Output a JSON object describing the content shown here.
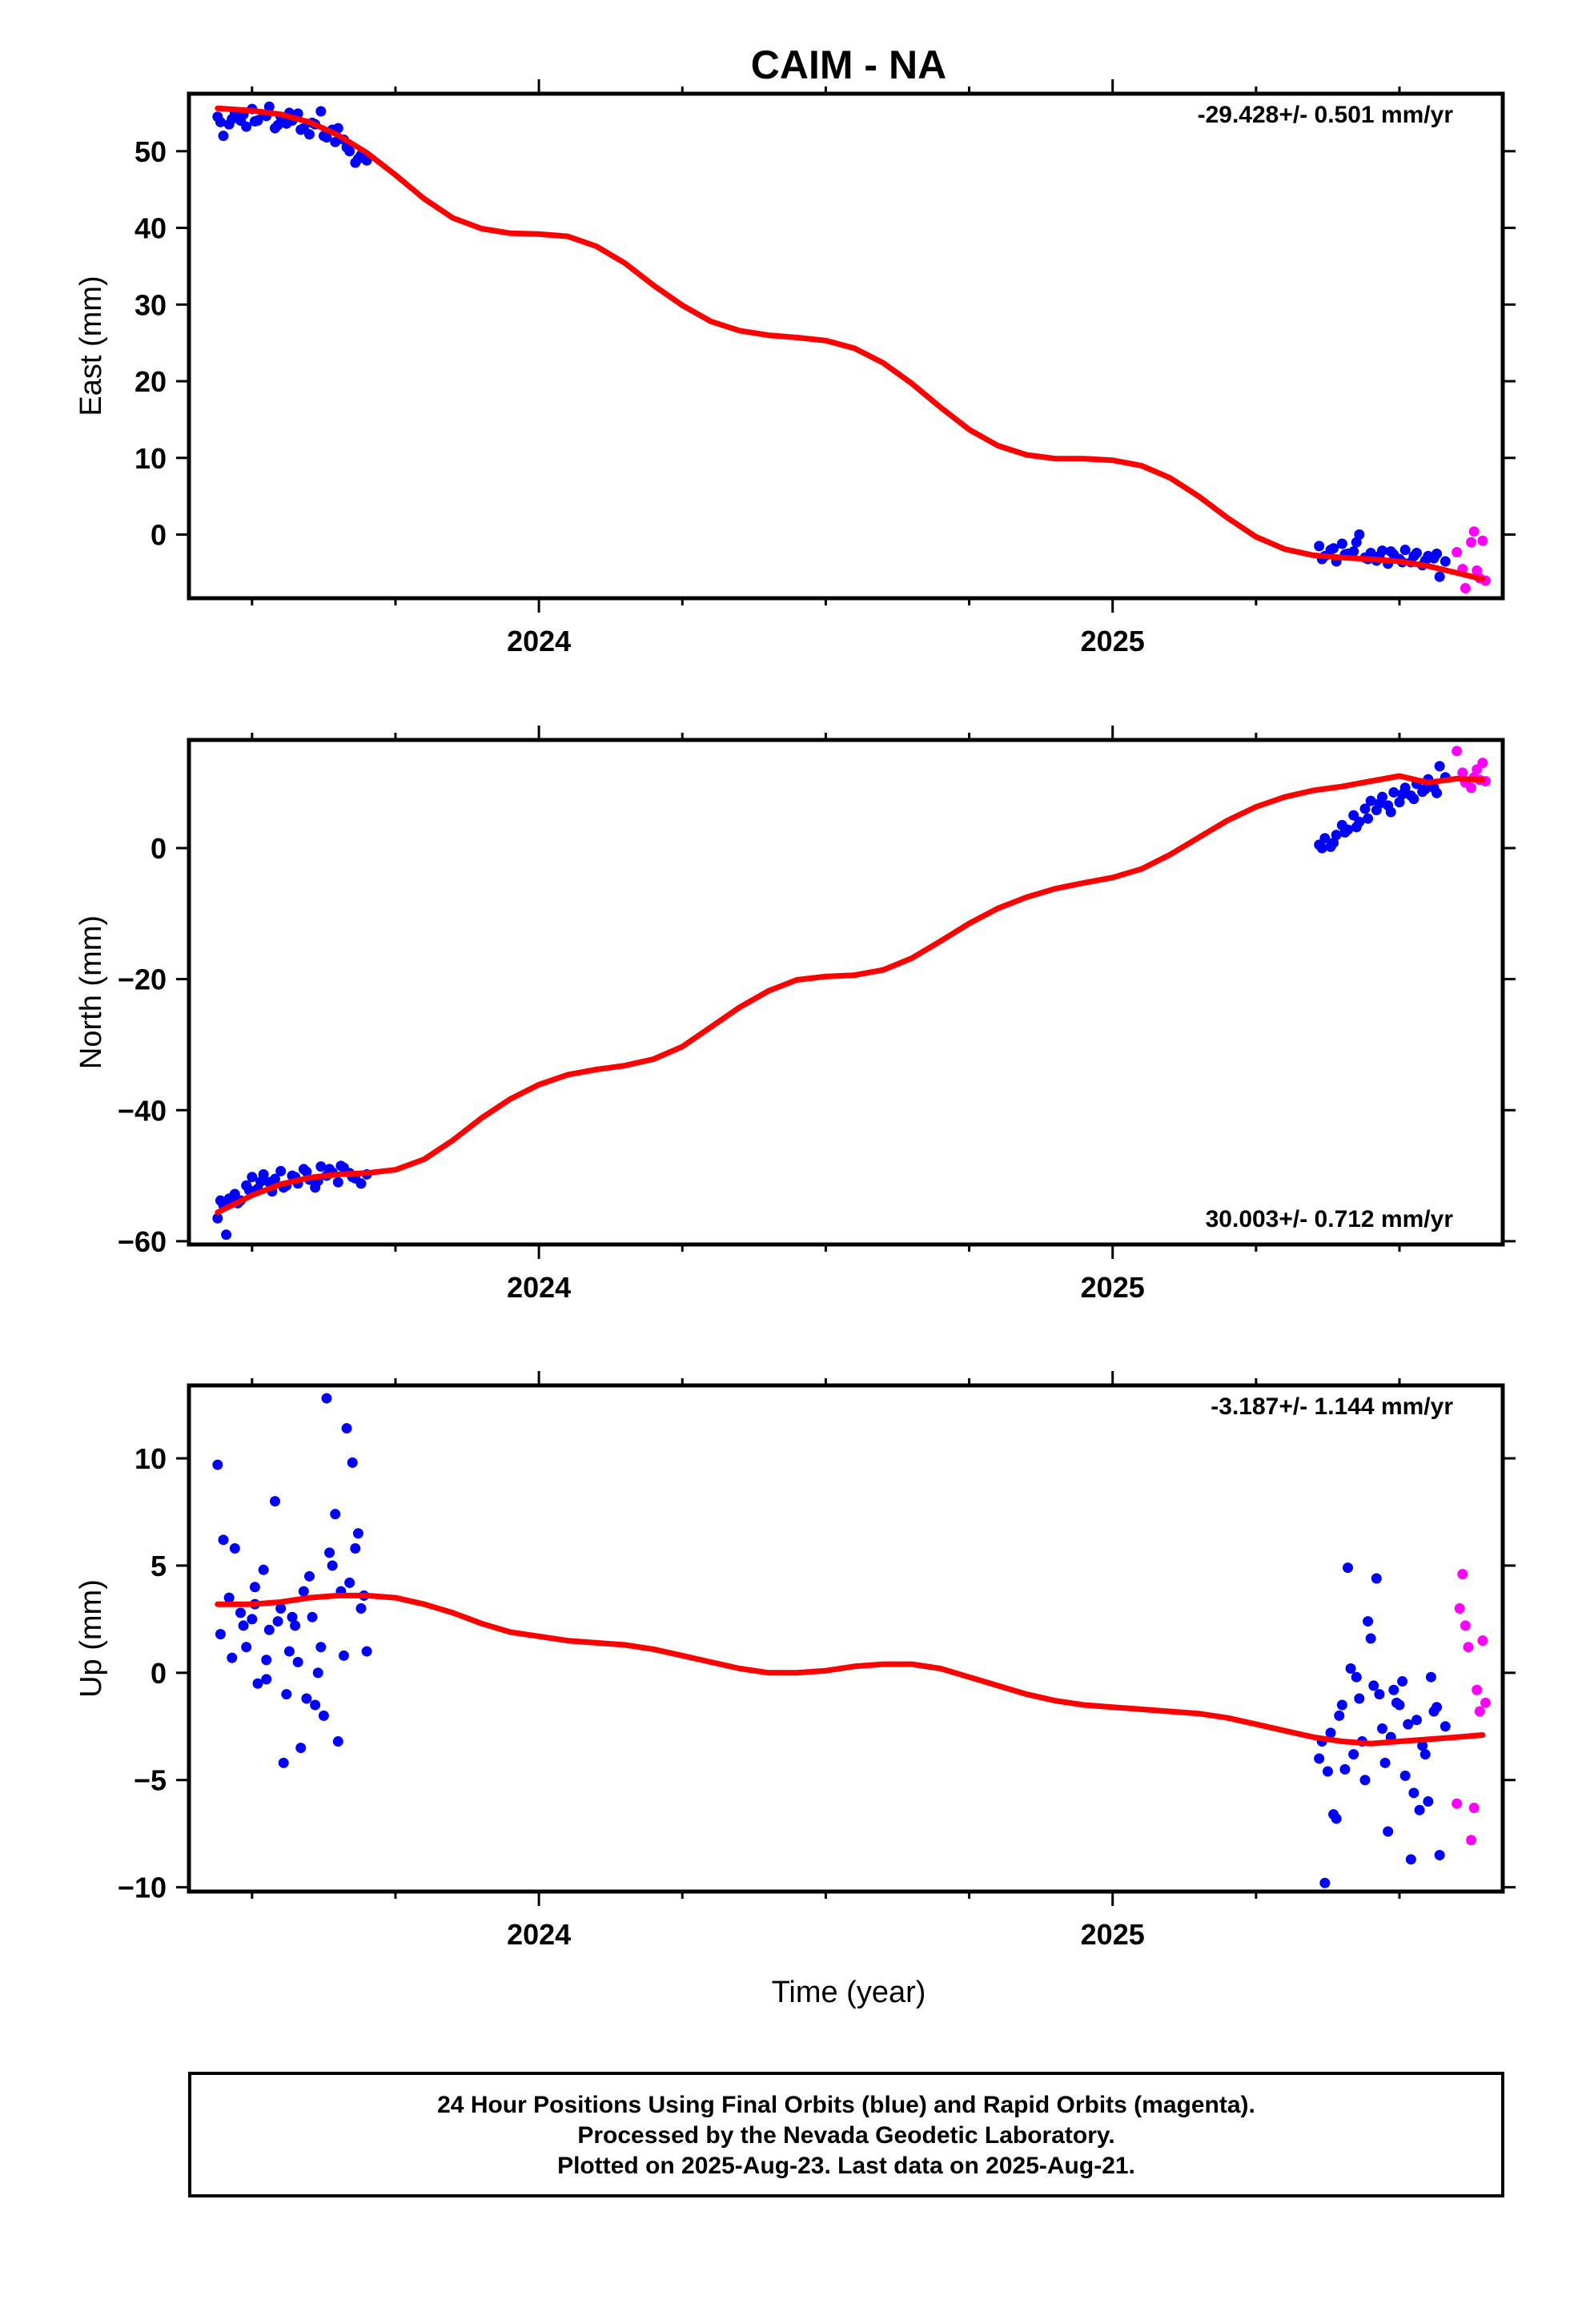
{
  "title": "CAIM - NA",
  "xlabel": "Time (year)",
  "colors": {
    "final": "#0000ff",
    "rapid": "#ff00ff",
    "model": "#ff0000",
    "frame": "#000000"
  },
  "footer": {
    "line1": "24 Hour Positions Using Final Orbits (blue) and Rapid Orbits (magenta).",
    "line2": "Processed by the Nevada Geodetic Laboratory.",
    "line3": "Plotted on 2025-Aug-23. Last data on 2025-Aug-21."
  },
  "chart_data": [
    {
      "type": "scatter",
      "component": "east",
      "ylabel": "East (mm)",
      "rate_text": "-29.428+/- 0.501 mm/yr",
      "rate_position": "top-right",
      "xlim": [
        2023.39,
        2025.68
      ],
      "ylim": [
        -8.3,
        57.5
      ],
      "yticks": [
        0,
        10,
        20,
        30,
        40,
        50
      ],
      "ytick_labels": [
        "0",
        "10",
        "20",
        "30",
        "40",
        "50"
      ],
      "xticks_major": [
        2024,
        2025
      ],
      "xtick_labels": [
        "2024",
        "2025"
      ],
      "xticks_minor": [
        2023.5,
        2023.75,
        2024.25,
        2024.5,
        2024.75,
        2025.25,
        2025.5
      ],
      "model": {
        "name": "",
        "x": [
          2023.44,
          2023.5,
          2023.55,
          2023.6,
          2023.65,
          2023.7,
          2023.75,
          2023.8,
          2023.85,
          2023.9,
          2023.95,
          2024.0,
          2024.05,
          2024.1,
          2024.15,
          2024.2,
          2024.25,
          2024.3,
          2024.35,
          2024.4,
          2024.45,
          2024.5,
          2024.55,
          2024.6,
          2024.65,
          2024.7,
          2024.75,
          2024.8,
          2024.85,
          2024.9,
          2024.95,
          2025.0,
          2025.05,
          2025.1,
          2025.15,
          2025.2,
          2025.25,
          2025.3,
          2025.35,
          2025.4,
          2025.45,
          2025.5,
          2025.55,
          2025.6,
          2025.645
        ],
        "y": [
          55.6,
          55.3,
          54.8,
          53.8,
          52.1,
          49.8,
          46.9,
          43.8,
          41.3,
          39.9,
          39.3,
          39.2,
          38.9,
          37.6,
          35.4,
          32.5,
          29.9,
          27.8,
          26.6,
          26.0,
          25.7,
          25.3,
          24.3,
          22.4,
          19.7,
          16.6,
          13.7,
          11.6,
          10.4,
          9.9,
          9.9,
          9.7,
          9.0,
          7.4,
          5.0,
          2.2,
          -0.3,
          -1.9,
          -2.7,
          -3.0,
          -3.2,
          -3.5,
          -4.1,
          -5.0,
          -5.8
        ]
      },
      "final_points": {
        "name": "",
        "x": [
          2023.44,
          2023.45,
          2023.46,
          2023.47,
          2023.48,
          2023.49,
          2023.5,
          2023.51,
          2023.52,
          2023.53,
          2023.54,
          2023.55,
          2023.56,
          2023.57,
          2023.58,
          2023.59,
          2023.6,
          2023.61,
          2023.62,
          2023.63,
          2023.64,
          2023.65,
          2023.66,
          2023.67,
          2023.68,
          2023.69,
          2023.7,
          2023.445,
          2023.465,
          2023.485,
          2023.505,
          2023.525,
          2023.545,
          2023.565,
          2023.585,
          2023.605,
          2023.625,
          2023.645,
          2023.665,
          2023.685,
          2025.36,
          2025.37,
          2025.38,
          2025.39,
          2025.4,
          2025.41,
          2025.42,
          2025.43,
          2025.44,
          2025.45,
          2025.46,
          2025.47,
          2025.48,
          2025.49,
          2025.5,
          2025.51,
          2025.52,
          2025.53,
          2025.54,
          2025.55,
          2025.56,
          2025.57,
          2025.58,
          2025.365,
          2025.385,
          2025.405,
          2025.425,
          2025.445,
          2025.465,
          2025.485,
          2025.505,
          2025.525,
          2025.545,
          2025.565
        ],
        "y": [
          54.5,
          52.0,
          53.5,
          55.0,
          54.0,
          53.2,
          55.5,
          54.0,
          54.8,
          55.8,
          53.0,
          54.5,
          53.6,
          54.0,
          54.9,
          53.0,
          52.2,
          53.5,
          55.2,
          51.8,
          52.8,
          53.0,
          51.5,
          50.0,
          48.5,
          49.5,
          48.8,
          53.8,
          54.2,
          54.8,
          53.9,
          54.6,
          53.4,
          55.0,
          52.8,
          53.7,
          52.0,
          51.2,
          50.5,
          49.0,
          -1.5,
          -2.8,
          -2.0,
          -3.5,
          -1.2,
          -2.5,
          -2.2,
          0.0,
          -3.0,
          -2.4,
          -3.4,
          -2.1,
          -3.8,
          -2.6,
          -3.2,
          -2.0,
          -3.6,
          -2.4,
          -4.0,
          -2.8,
          -3.1,
          -5.5,
          -3.5,
          -3.2,
          -1.8,
          -2.6,
          -1.0,
          -3.2,
          -2.8,
          -2.2,
          -3.6,
          -2.8,
          -3.4,
          -2.5
        ]
      },
      "rapid_points": {
        "name": "",
        "x": [
          2025.6,
          2025.61,
          2025.615,
          2025.625,
          2025.63,
          2025.635,
          2025.64,
          2025.645,
          2025.65
        ],
        "y": [
          -2.3,
          -4.5,
          -7.0,
          -1.0,
          0.4,
          -4.7,
          -5.7,
          -0.8,
          -6.0
        ]
      }
    },
    {
      "type": "scatter",
      "component": "north",
      "ylabel": "North (mm)",
      "rate_text": "30.003+/- 0.712 mm/yr",
      "rate_position": "bottom-right",
      "xlim": [
        2023.39,
        2025.68
      ],
      "ylim": [
        -60.5,
        16.5
      ],
      "yticks": [
        -60,
        -40,
        -20,
        0
      ],
      "ytick_labels": [
        "−60",
        "−40",
        "−20",
        "0"
      ],
      "xticks_major": [
        2024,
        2025
      ],
      "xtick_labels": [
        "2024",
        "2025"
      ],
      "xticks_minor": [
        2023.5,
        2023.75,
        2024.25,
        2024.5,
        2024.75,
        2025.25,
        2025.5
      ],
      "model": {
        "name": "",
        "x": [
          2023.44,
          2023.5,
          2023.55,
          2023.6,
          2023.65,
          2023.7,
          2023.75,
          2023.8,
          2023.85,
          2023.9,
          2023.95,
          2024.0,
          2024.05,
          2024.1,
          2024.15,
          2024.2,
          2024.25,
          2024.3,
          2024.35,
          2024.4,
          2024.45,
          2024.5,
          2024.55,
          2024.6,
          2024.65,
          2024.7,
          2024.75,
          2024.8,
          2024.85,
          2024.9,
          2024.95,
          2025.0,
          2025.05,
          2025.1,
          2025.15,
          2025.2,
          2025.25,
          2025.3,
          2025.35,
          2025.4,
          2025.45,
          2025.5,
          2025.55,
          2025.6,
          2025.645
        ],
        "y": [
          -55.6,
          -53.0,
          -51.3,
          -50.3,
          -49.8,
          -49.6,
          -49.1,
          -47.5,
          -44.6,
          -41.2,
          -38.3,
          -36.1,
          -34.6,
          -33.8,
          -33.2,
          -32.2,
          -30.3,
          -27.3,
          -24.3,
          -21.8,
          -20.1,
          -19.6,
          -19.4,
          -18.6,
          -16.8,
          -14.2,
          -11.5,
          -9.2,
          -7.5,
          -6.2,
          -5.3,
          -4.5,
          -3.2,
          -1.0,
          1.6,
          4.2,
          6.3,
          7.8,
          8.8,
          9.4,
          10.2,
          11.0,
          10.0,
          10.6,
          10.4
        ]
      },
      "final_points": {
        "name": "",
        "x": [
          2023.44,
          2023.45,
          2023.46,
          2023.47,
          2023.48,
          2023.49,
          2023.5,
          2023.51,
          2023.52,
          2023.53,
          2023.54,
          2023.55,
          2023.56,
          2023.57,
          2023.58,
          2023.59,
          2023.6,
          2023.61,
          2023.62,
          2023.63,
          2023.64,
          2023.65,
          2023.66,
          2023.67,
          2023.68,
          2023.69,
          2023.7,
          2023.445,
          2023.455,
          2023.475,
          2023.495,
          2023.515,
          2023.535,
          2023.555,
          2023.575,
          2023.595,
          2023.615,
          2023.635,
          2023.655,
          2023.675,
          2025.36,
          2025.37,
          2025.38,
          2025.39,
          2025.4,
          2025.41,
          2025.42,
          2025.43,
          2025.44,
          2025.45,
          2025.46,
          2025.47,
          2025.48,
          2025.49,
          2025.5,
          2025.51,
          2025.52,
          2025.53,
          2025.54,
          2025.55,
          2025.56,
          2025.57,
          2025.58,
          2025.365,
          2025.385,
          2025.405,
          2025.425,
          2025.445,
          2025.465,
          2025.485,
          2025.505,
          2025.525,
          2025.545,
          2025.565
        ],
        "y": [
          -56.5,
          -54.5,
          -53.5,
          -52.8,
          -53.8,
          -51.5,
          -50.2,
          -52.0,
          -49.8,
          -51.0,
          -50.5,
          -49.3,
          -51.5,
          -50.0,
          -51.2,
          -49.0,
          -50.6,
          -51.8,
          -48.6,
          -50.0,
          -49.5,
          -51.0,
          -48.8,
          -49.6,
          -50.4,
          -51.2,
          -49.8,
          -53.8,
          -59.0,
          -54.2,
          -52.2,
          -50.9,
          -52.4,
          -51.8,
          -50.2,
          -49.4,
          -50.8,
          -49.0,
          -48.5,
          -50.2,
          0.5,
          1.5,
          0.2,
          2.0,
          3.5,
          2.8,
          5.0,
          4.0,
          6.0,
          7.2,
          5.8,
          7.8,
          6.5,
          8.5,
          7.0,
          9.2,
          8.0,
          9.8,
          8.6,
          10.5,
          9.2,
          12.5,
          10.8,
          0.0,
          0.8,
          2.4,
          3.2,
          4.5,
          6.8,
          5.5,
          8.2,
          7.5,
          9.0,
          8.4
        ]
      },
      "rapid_points": {
        "name": "",
        "x": [
          2025.6,
          2025.61,
          2025.615,
          2025.625,
          2025.63,
          2025.635,
          2025.64,
          2025.645,
          2025.65
        ],
        "y": [
          14.8,
          11.5,
          10.0,
          9.2,
          10.8,
          12.0,
          10.4,
          13.0,
          10.2
        ]
      }
    },
    {
      "type": "scatter",
      "component": "up",
      "ylabel": "Up (mm)",
      "rate_text": "-3.187+/- 1.144 mm/yr",
      "rate_position": "top-right",
      "xlim": [
        2023.39,
        2025.68
      ],
      "ylim": [
        -10.2,
        13.4
      ],
      "yticks": [
        -10,
        -5,
        0,
        5,
        10
      ],
      "ytick_labels": [
        "−10",
        "−5",
        "0",
        "5",
        "10"
      ],
      "xticks_major": [
        2024,
        2025
      ],
      "xtick_labels": [
        "2024",
        "2025"
      ],
      "xticks_minor": [
        2023.5,
        2023.75,
        2024.25,
        2024.5,
        2024.75,
        2025.25,
        2025.5
      ],
      "model": {
        "name": "",
        "x": [
          2023.44,
          2023.5,
          2023.55,
          2023.6,
          2023.65,
          2023.7,
          2023.75,
          2023.8,
          2023.85,
          2023.9,
          2023.95,
          2024.0,
          2024.05,
          2024.1,
          2024.15,
          2024.2,
          2024.25,
          2024.3,
          2024.35,
          2024.4,
          2024.45,
          2024.5,
          2024.55,
          2024.6,
          2024.65,
          2024.7,
          2024.75,
          2024.8,
          2024.85,
          2024.9,
          2024.95,
          2025.0,
          2025.05,
          2025.1,
          2025.15,
          2025.2,
          2025.25,
          2025.3,
          2025.35,
          2025.4,
          2025.45,
          2025.5,
          2025.55,
          2025.6,
          2025.645
        ],
        "y": [
          3.2,
          3.2,
          3.3,
          3.5,
          3.6,
          3.6,
          3.5,
          3.2,
          2.8,
          2.3,
          1.9,
          1.7,
          1.5,
          1.4,
          1.3,
          1.1,
          0.8,
          0.5,
          0.2,
          0.0,
          0.0,
          0.1,
          0.3,
          0.4,
          0.4,
          0.2,
          -0.2,
          -0.6,
          -1.0,
          -1.3,
          -1.5,
          -1.6,
          -1.7,
          -1.8,
          -1.9,
          -2.1,
          -2.4,
          -2.7,
          -3.0,
          -3.2,
          -3.3,
          -3.2,
          -3.1,
          -3.0,
          -2.9
        ]
      },
      "final_points": {
        "name": "",
        "x": [
          2023.44,
          2023.45,
          2023.46,
          2023.47,
          2023.48,
          2023.49,
          2023.5,
          2023.51,
          2023.52,
          2023.53,
          2023.54,
          2023.55,
          2023.56,
          2023.57,
          2023.58,
          2023.59,
          2023.6,
          2023.61,
          2023.62,
          2023.63,
          2023.64,
          2023.65,
          2023.66,
          2023.67,
          2023.68,
          2023.69,
          2023.7,
          2023.445,
          2023.465,
          2023.485,
          2023.505,
          2023.525,
          2023.545,
          2023.565,
          2023.585,
          2023.605,
          2023.625,
          2023.645,
          2023.655,
          2023.665,
          2023.675,
          2023.685,
          2023.695,
          2023.555,
          2023.575,
          2023.595,
          2023.615,
          2023.635,
          2023.525,
          2023.505,
          2025.36,
          2025.37,
          2025.38,
          2025.39,
          2025.4,
          2025.41,
          2025.42,
          2025.43,
          2025.44,
          2025.45,
          2025.46,
          2025.47,
          2025.48,
          2025.49,
          2025.5,
          2025.51,
          2025.52,
          2025.53,
          2025.54,
          2025.55,
          2025.56,
          2025.57,
          2025.58,
          2025.365,
          2025.385,
          2025.405,
          2025.425,
          2025.445,
          2025.465,
          2025.485,
          2025.505,
          2025.525,
          2025.545,
          2025.565,
          2025.375,
          2025.395,
          2025.415,
          2025.435,
          2025.455,
          2025.475,
          2025.495,
          2025.515,
          2025.535,
          2025.555
        ],
        "y": [
          9.7,
          6.2,
          3.5,
          5.8,
          2.8,
          1.2,
          2.5,
          -0.5,
          4.8,
          2.0,
          8.0,
          3.0,
          -1.0,
          2.6,
          0.5,
          3.8,
          4.5,
          -1.5,
          1.2,
          12.8,
          5.0,
          -3.2,
          0.8,
          4.2,
          5.8,
          3.0,
          1.0,
          1.8,
          0.7,
          2.2,
          4.0,
          -0.3,
          2.4,
          1.0,
          -3.5,
          2.6,
          -2.0,
          7.4,
          3.8,
          11.4,
          9.8,
          6.5,
          3.6,
          -4.2,
          2.2,
          -1.2,
          0.0,
          5.6,
          0.6,
          3.2,
          -4.0,
          -9.8,
          -2.8,
          -6.8,
          -1.5,
          4.9,
          -3.8,
          -1.2,
          -5.0,
          1.6,
          4.4,
          -2.6,
          -7.4,
          -0.8,
          -1.5,
          -4.8,
          -8.7,
          -2.2,
          -3.4,
          -6.0,
          -1.8,
          -8.5,
          -2.5,
          -3.2,
          -6.6,
          -4.5,
          -0.2,
          2.4,
          -1.0,
          -3.0,
          -0.4,
          -5.6,
          -3.8,
          -1.6,
          -4.6,
          -2.0,
          0.2,
          -3.2,
          -0.6,
          -4.2,
          -1.4,
          -2.4,
          -6.4,
          -0.2
        ]
      },
      "rapid_points": {
        "name": "",
        "x": [
          2025.6,
          2025.605,
          2025.61,
          2025.615,
          2025.62,
          2025.625,
          2025.63,
          2025.635,
          2025.64,
          2025.645,
          2025.65
        ],
        "y": [
          -6.1,
          3.0,
          4.6,
          2.2,
          1.2,
          -7.8,
          -6.3,
          -0.8,
          -1.8,
          1.5,
          -1.4
        ]
      }
    }
  ]
}
